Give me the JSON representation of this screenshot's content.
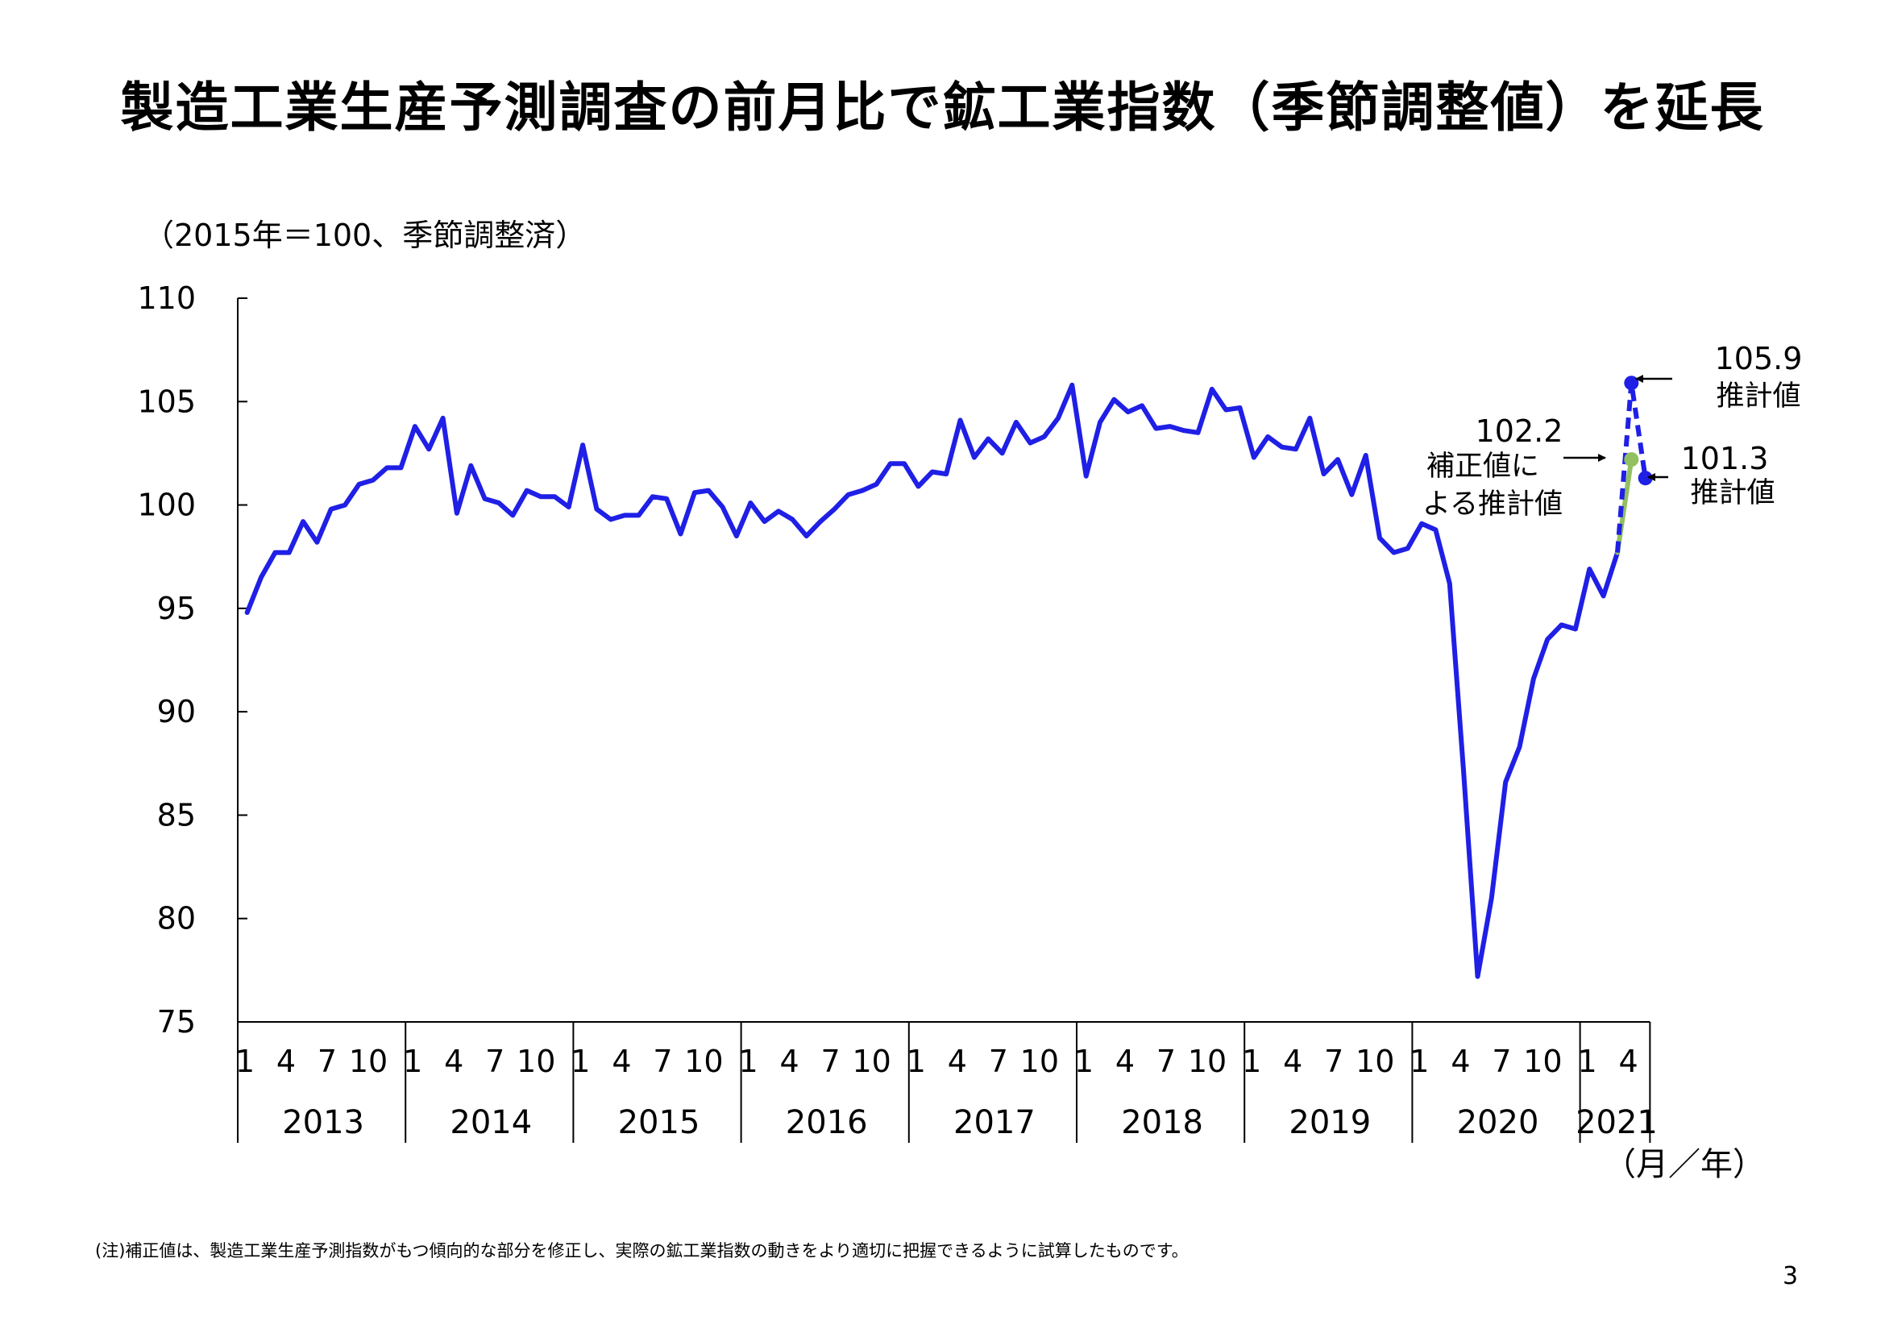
{
  "title": "製造工業生産予測調査の前月比で鉱工業指数（季節調整値）を延長",
  "footnote": "(注)補正値は、製造工業生産予測指数がもつ傾向的な部分を修正し、実際の鉱工業指数の動きをより適切に把握できるように試算したものです。",
  "page_number": "3",
  "chart_data": {
    "type": "line",
    "unit_label": "（2015年＝100、季節調整済）",
    "xlabel": "（月／年）",
    "ylim": [
      75,
      110
    ],
    "yticks": [
      "110",
      "105",
      "100",
      "95",
      "90",
      "85",
      "80",
      "75"
    ],
    "years": [
      "2013",
      "2014",
      "2015",
      "2016",
      "2017",
      "2018",
      "2019",
      "2020",
      "2021"
    ],
    "month_ticks": [
      "1",
      "4",
      "7",
      "10"
    ],
    "month_ticks_2021": [
      "1",
      "4"
    ],
    "start": "2013-01",
    "series": [
      {
        "color": "#1f1fe6",
        "values": [
          94.8,
          96.5,
          97.7,
          97.7,
          99.2,
          98.2,
          99.8,
          100.0,
          101.0,
          101.2,
          101.8,
          101.8,
          103.8,
          102.7,
          104.2,
          99.6,
          101.9,
          100.3,
          100.1,
          99.5,
          100.7,
          100.4,
          100.4,
          99.9,
          102.9,
          99.8,
          99.3,
          99.5,
          99.5,
          100.4,
          100.3,
          98.6,
          100.6,
          100.7,
          99.9,
          98.5,
          100.1,
          99.2,
          99.7,
          99.3,
          98.5,
          99.2,
          99.8,
          100.5,
          100.7,
          101.0,
          102.0,
          102.0,
          100.9,
          101.6,
          101.5,
          104.1,
          102.3,
          103.2,
          102.5,
          104.0,
          103.0,
          103.3,
          104.2,
          105.8,
          101.4,
          104.0,
          105.1,
          104.5,
          104.8,
          103.7,
          103.8,
          103.6,
          103.5,
          105.6,
          104.6,
          104.7,
          102.3,
          103.3,
          102.8,
          102.7,
          104.2,
          101.5,
          102.2,
          100.5,
          102.4,
          98.4,
          97.7,
          97.9,
          99.1,
          98.8,
          96.2,
          87.1,
          77.2,
          81.0,
          86.6,
          88.3,
          91.6,
          93.5,
          94.2,
          94.0,
          96.9,
          95.6,
          97.7
        ]
      }
    ],
    "forecast": {
      "base": 97.7,
      "estimate_color": "#1f1fe6",
      "corrected_color": "#92c060",
      "estimate_points": [
        105.9,
        101.3
      ],
      "corrected_point": 102.2,
      "annotations": {
        "est1_value": "105.9",
        "est1_label": "推計値",
        "est2_value": "101.3",
        "est2_label": "推計値",
        "corrected_value": "102.2",
        "corrected_label_1": "補正値に",
        "corrected_label_2": "よる推計値"
      }
    }
  }
}
